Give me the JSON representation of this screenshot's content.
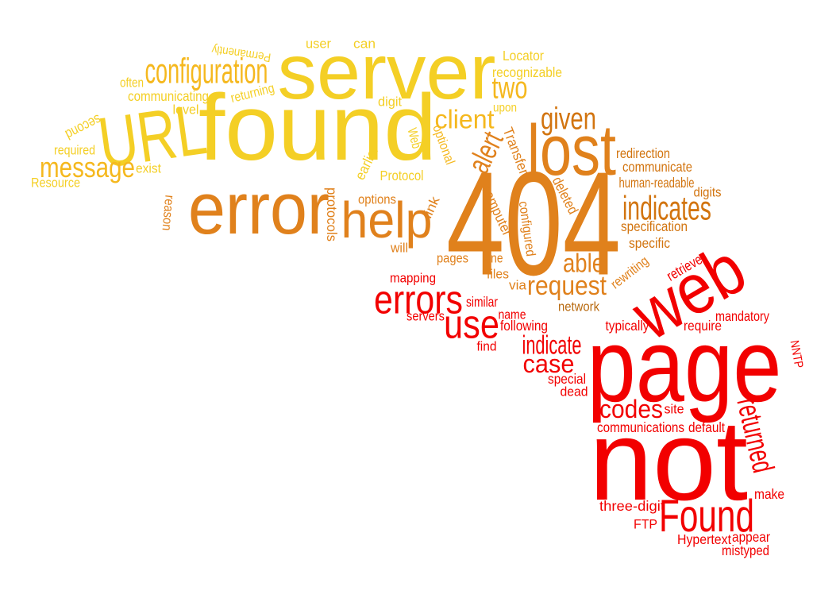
{
  "palette": {
    "yellow": "#f4cf25",
    "gold": "#f5b81e",
    "orange": "#e0811c",
    "dark_orange": "#d2740f",
    "brown_orange": "#b86a10",
    "red": "#f20000",
    "dark_red": "#d90000"
  },
  "words": [
    {
      "name": "word-404",
      "text": "404",
      "color": "orange"
    },
    {
      "name": "word-page",
      "text": "page",
      "color": "red"
    },
    {
      "name": "word-not",
      "text": "not",
      "color": "red"
    },
    {
      "name": "word-found",
      "text": "found",
      "color": "yellow"
    },
    {
      "name": "word-server",
      "text": "server",
      "color": "yellow"
    },
    {
      "name": "word-error",
      "text": "error",
      "color": "orange"
    },
    {
      "name": "word-url",
      "text": "URL",
      "color": "yellow"
    },
    {
      "name": "word-web",
      "text": "web",
      "color": "red"
    },
    {
      "name": "word-lost",
      "text": "lost",
      "color": "orange"
    },
    {
      "name": "word-help",
      "text": "help",
      "color": "orange"
    },
    {
      "name": "word-found-capital",
      "text": "Found",
      "color": "red"
    },
    {
      "name": "word-errors",
      "text": "errors",
      "color": "red"
    },
    {
      "name": "word-use",
      "text": "use",
      "color": "red"
    },
    {
      "name": "word-configuration",
      "text": "configuration",
      "color": "gold"
    },
    {
      "name": "word-message",
      "text": "message",
      "color": "gold"
    },
    {
      "name": "word-two",
      "text": "two",
      "color": "gold"
    },
    {
      "name": "word-client",
      "text": "client",
      "color": "gold"
    },
    {
      "name": "word-given",
      "text": "given",
      "color": "dark_orange"
    },
    {
      "name": "word-alert",
      "text": "alert",
      "color": "orange"
    },
    {
      "name": "word-indicates",
      "text": "indicates",
      "color": "dark_orange"
    },
    {
      "name": "word-able",
      "text": "able",
      "color": "orange"
    },
    {
      "name": "word-request",
      "text": "request",
      "color": "orange"
    },
    {
      "name": "word-indicate",
      "text": "indicate",
      "color": "red"
    },
    {
      "name": "word-case",
      "text": "case",
      "color": "red"
    },
    {
      "name": "word-codes",
      "text": "codes",
      "color": "red"
    },
    {
      "name": "word-returned",
      "text": "returned",
      "color": "red"
    },
    {
      "name": "word-permanently",
      "text": "Permanently",
      "color": "yellow"
    },
    {
      "name": "word-user",
      "text": "user",
      "color": "yellow"
    },
    {
      "name": "word-can",
      "text": "can",
      "color": "yellow"
    },
    {
      "name": "word-locator",
      "text": "Locator",
      "color": "yellow"
    },
    {
      "name": "word-recognizable",
      "text": "recognizable",
      "color": "yellow"
    },
    {
      "name": "word-often",
      "text": "often",
      "color": "yellow"
    },
    {
      "name": "word-communicating",
      "text": "communicating",
      "color": "yellow"
    },
    {
      "name": "word-level",
      "text": "level",
      "color": "yellow"
    },
    {
      "name": "word-returning",
      "text": "returning",
      "color": "yellow"
    },
    {
      "name": "word-digit",
      "text": "digit",
      "color": "yellow"
    },
    {
      "name": "word-upon",
      "text": "upon",
      "color": "yellow"
    },
    {
      "name": "word-second",
      "text": "second",
      "color": "yellow"
    },
    {
      "name": "word-required",
      "text": "required",
      "color": "yellow"
    },
    {
      "name": "word-exist",
      "text": "exist",
      "color": "yellow"
    },
    {
      "name": "word-resource",
      "text": "Resource",
      "color": "yellow"
    },
    {
      "name": "word-earlier",
      "text": "earlier",
      "color": "yellow"
    },
    {
      "name": "word-web-small",
      "text": "Web",
      "color": "yellow"
    },
    {
      "name": "word-optional",
      "text": "optional",
      "color": "gold"
    },
    {
      "name": "word-protocol",
      "text": "Protocol",
      "color": "yellow"
    },
    {
      "name": "word-transfer",
      "text": "Transfer",
      "color": "orange"
    },
    {
      "name": "word-redirection",
      "text": "redirection",
      "color": "dark_orange"
    },
    {
      "name": "word-communicate",
      "text": "communicate",
      "color": "dark_orange"
    },
    {
      "name": "word-human-readable",
      "text": "human-readable",
      "color": "dark_orange"
    },
    {
      "name": "word-deleted",
      "text": "deleted",
      "color": "orange"
    },
    {
      "name": "word-digits",
      "text": "digits",
      "color": "dark_orange"
    },
    {
      "name": "word-specification",
      "text": "specification",
      "color": "dark_orange"
    },
    {
      "name": "word-specific",
      "text": "specific",
      "color": "dark_orange"
    },
    {
      "name": "word-reason",
      "text": "reason",
      "color": "orange"
    },
    {
      "name": "word-protocols",
      "text": "protocols",
      "color": "orange"
    },
    {
      "name": "word-options",
      "text": "options",
      "color": "orange"
    },
    {
      "name": "word-link",
      "text": "link",
      "color": "orange"
    },
    {
      "name": "word-will",
      "text": "will",
      "color": "orange"
    },
    {
      "name": "word-computer",
      "text": "computer",
      "color": "orange"
    },
    {
      "name": "word-configured",
      "text": "configured",
      "color": "orange"
    },
    {
      "name": "word-pages",
      "text": "pages",
      "color": "orange"
    },
    {
      "name": "word-one",
      "text": "one",
      "color": "orange"
    },
    {
      "name": "word-files",
      "text": "files",
      "color": "orange"
    },
    {
      "name": "word-via",
      "text": "via",
      "color": "orange"
    },
    {
      "name": "word-network",
      "text": "network",
      "color": "brown_orange"
    },
    {
      "name": "word-rewriting",
      "text": "rewriting",
      "color": "orange"
    },
    {
      "name": "word-retrieve",
      "text": "retrieve",
      "color": "red"
    },
    {
      "name": "word-mapping",
      "text": "mapping",
      "color": "red"
    },
    {
      "name": "word-similar",
      "text": "similar",
      "color": "red"
    },
    {
      "name": "word-name",
      "text": "name",
      "color": "red"
    },
    {
      "name": "word-servers",
      "text": "servers",
      "color": "red"
    },
    {
      "name": "word-following",
      "text": "following",
      "color": "red"
    },
    {
      "name": "word-find",
      "text": "find",
      "color": "red"
    },
    {
      "name": "word-mandatory",
      "text": "mandatory",
      "color": "red"
    },
    {
      "name": "word-typically",
      "text": "typically",
      "color": "red"
    },
    {
      "name": "word-require",
      "text": "require",
      "color": "red"
    },
    {
      "name": "word-nntp",
      "text": "NNTP",
      "color": "red"
    },
    {
      "name": "word-special",
      "text": "special",
      "color": "red"
    },
    {
      "name": "word-dead",
      "text": "dead",
      "color": "red"
    },
    {
      "name": "word-site",
      "text": "site",
      "color": "red"
    },
    {
      "name": "word-communications",
      "text": "communications",
      "color": "red"
    },
    {
      "name": "word-default",
      "text": "default",
      "color": "red"
    },
    {
      "name": "word-make",
      "text": "make",
      "color": "red"
    },
    {
      "name": "word-three-digit",
      "text": "three-digit",
      "color": "red"
    },
    {
      "name": "word-ftp",
      "text": "FTP",
      "color": "red"
    },
    {
      "name": "word-appear",
      "text": "appear",
      "color": "red"
    },
    {
      "name": "word-hypertext",
      "text": "Hypertext",
      "color": "red"
    },
    {
      "name": "word-mistyped",
      "text": "mistyped",
      "color": "red"
    }
  ]
}
